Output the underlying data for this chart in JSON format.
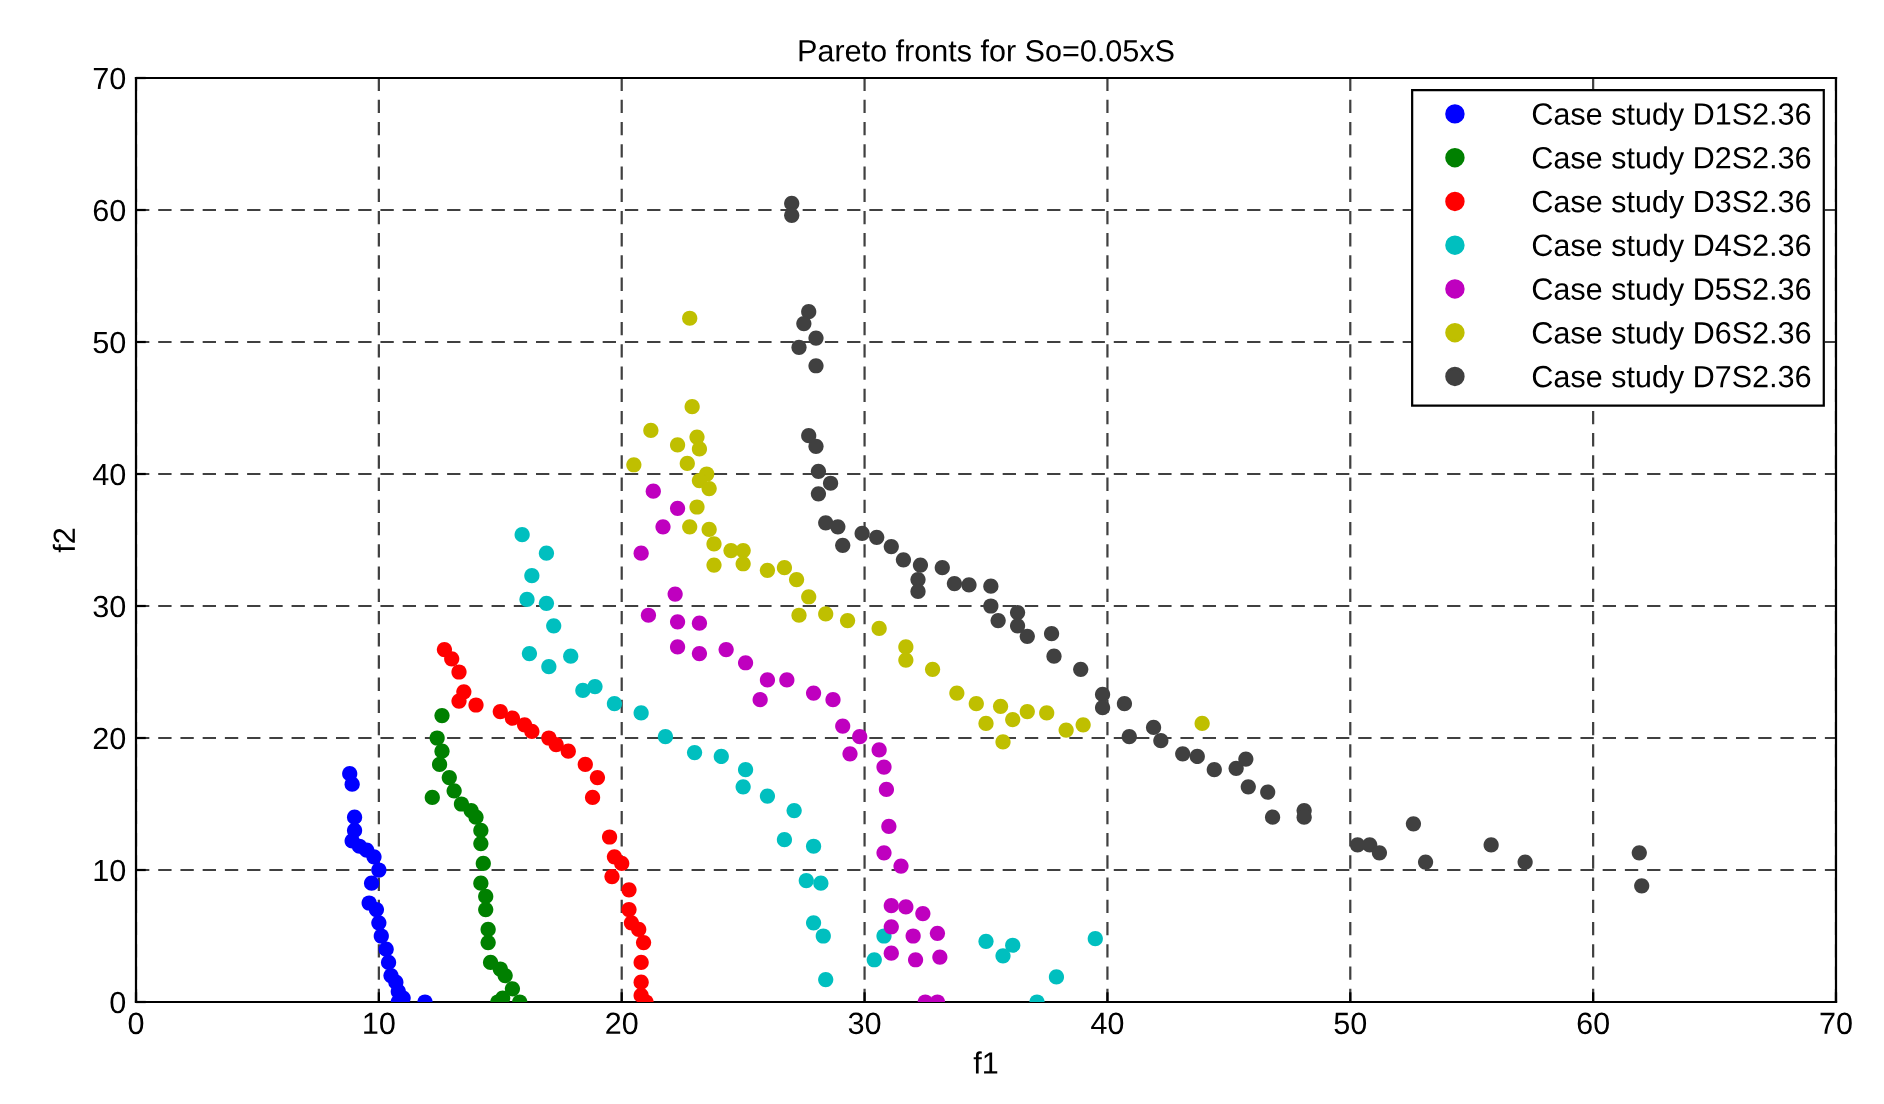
{
  "chart_data": {
    "type": "scatter",
    "title": "Pareto fronts for So=0.05xS",
    "xlabel": "f1",
    "ylabel": "f2",
    "xlim": [
      0,
      70
    ],
    "ylim": [
      0,
      70
    ],
    "xticks": [
      0,
      10,
      20,
      30,
      40,
      50,
      60,
      70
    ],
    "yticks": [
      0,
      10,
      20,
      30,
      40,
      50,
      60,
      70
    ],
    "grid": true,
    "legend": "top right",
    "marker": "circle",
    "series": [
      {
        "name": "Case study D1S2.36",
        "color": "#0000ff",
        "x": [
          8.8,
          8.9,
          9.0,
          9.0,
          8.9,
          9.2,
          9.5,
          9.8,
          10.0,
          9.7,
          9.6,
          9.9,
          10.0,
          10.1,
          10.3,
          10.4,
          10.5,
          10.7,
          10.8,
          11.0,
          10.8,
          11.9
        ],
        "values": [
          17.3,
          16.5,
          14,
          13,
          12.2,
          11.8,
          11.5,
          11,
          10,
          9,
          7.5,
          7,
          6,
          5,
          4,
          3,
          2,
          1.5,
          0.8,
          0.3,
          0,
          0
        ]
      },
      {
        "name": "Case study D2S2.36",
        "color": "#008000",
        "x": [
          12.6,
          12.4,
          12.6,
          12.5,
          12.9,
          12.2,
          13.1,
          13.4,
          13.8,
          14.0,
          14.2,
          14.2,
          14.3,
          14.2,
          14.4,
          14.4,
          14.5,
          14.5,
          14.6,
          15.0,
          15.2,
          15.5,
          15.1,
          14.9,
          15.8
        ],
        "values": [
          21.7,
          20,
          19,
          18,
          17,
          15.5,
          16,
          15,
          14.5,
          14,
          13,
          12,
          10.5,
          9,
          8,
          7,
          5.5,
          4.5,
          3,
          2.5,
          2,
          1,
          0.3,
          0,
          0
        ]
      },
      {
        "name": "Case study D3S2.36",
        "color": "#ff0000",
        "x": [
          12.7,
          13.0,
          13.3,
          13.5,
          13.3,
          14.0,
          15.0,
          15.5,
          16.0,
          16.3,
          17.0,
          17.3,
          17.8,
          18.5,
          19.0,
          18.8,
          19.5,
          19.7,
          20.0,
          19.6,
          20.3,
          20.3,
          20.4,
          20.7,
          20.9,
          20.8,
          20.8,
          20.8,
          21.0
        ],
        "values": [
          26.7,
          26,
          25,
          23.5,
          22.8,
          22.5,
          22,
          21.5,
          21,
          20.5,
          20,
          19.5,
          19,
          18,
          17,
          15.5,
          12.5,
          11,
          10.5,
          9.5,
          8.5,
          7,
          6,
          5.5,
          4.5,
          3,
          1.5,
          0.5,
          0
        ]
      },
      {
        "name": "Case study D4S2.36",
        "color": "#00bfbf",
        "x": [
          15.9,
          16.9,
          16.3,
          16.1,
          16.9,
          17.2,
          16.2,
          17.0,
          17.9,
          18.4,
          18.9,
          19.7,
          20.8,
          21.8,
          23.0,
          24.1,
          25.1,
          25.0,
          26.0,
          27.1,
          26.7,
          27.9,
          27.6,
          28.2,
          27.9,
          28.3,
          28.4,
          30.4,
          30.8,
          35.0,
          36.1,
          35.7,
          37.9,
          37.1,
          39.5
        ],
        "values": [
          35.4,
          34,
          32.3,
          30.5,
          30.2,
          28.5,
          26.4,
          25.4,
          26.2,
          23.6,
          23.9,
          22.6,
          21.9,
          20.1,
          18.9,
          18.6,
          17.6,
          16.3,
          15.6,
          14.5,
          12.3,
          11.8,
          9.2,
          9.0,
          6.0,
          5.0,
          1.7,
          3.2,
          5.0,
          4.6,
          4.3,
          3.5,
          1.9,
          0,
          4.8
        ]
      },
      {
        "name": "Case study D5S2.36",
        "color": "#bf00bf",
        "x": [
          21.3,
          22.3,
          21.7,
          20.8,
          22.2,
          21.1,
          22.3,
          22.3,
          23.2,
          23.2,
          24.3,
          25.1,
          26.0,
          25.7,
          26.8,
          27.9,
          28.7,
          29.1,
          29.8,
          29.4,
          30.6,
          30.8,
          30.9,
          31.0,
          30.8,
          31.5,
          31.1,
          31.7,
          31.1,
          32.4,
          32.0,
          33.0,
          31.1,
          32.1,
          33.1,
          32.5,
          33.0
        ],
        "values": [
          38.7,
          37.4,
          36.0,
          34.0,
          30.9,
          29.3,
          28.8,
          26.9,
          28.7,
          26.4,
          26.7,
          25.7,
          24.4,
          22.9,
          24.4,
          23.4,
          22.9,
          20.9,
          20.1,
          18.8,
          19.1,
          17.8,
          16.1,
          13.3,
          11.3,
          10.3,
          7.3,
          7.2,
          5.7,
          6.7,
          5.0,
          5.2,
          3.7,
          3.2,
          3.4,
          0,
          0
        ]
      },
      {
        "name": "Case study D6S2.36",
        "color": "#bfbf00",
        "x": [
          22.8,
          22.9,
          21.2,
          22.3,
          23.1,
          23.2,
          22.7,
          20.5,
          23.5,
          23.2,
          23.6,
          23.1,
          22.8,
          23.6,
          23.8,
          24.5,
          23.8,
          25.0,
          25.0,
          26.0,
          26.7,
          27.2,
          27.7,
          27.3,
          28.4,
          29.3,
          30.6,
          31.7,
          31.7,
          32.8,
          33.8,
          34.6,
          35.6,
          35.0,
          36.1,
          36.7,
          37.5,
          35.7,
          38.3,
          39.0,
          43.9
        ],
        "values": [
          51.8,
          45.1,
          43.3,
          42.2,
          42.8,
          41.9,
          40.8,
          40.7,
          40.0,
          39.5,
          38.9,
          37.5,
          36.0,
          35.8,
          34.7,
          34.2,
          33.1,
          34.2,
          33.2,
          32.7,
          32.9,
          32.0,
          30.7,
          29.3,
          29.4,
          28.9,
          28.3,
          26.9,
          25.9,
          25.2,
          23.4,
          22.6,
          22.4,
          21.1,
          21.4,
          22.0,
          21.9,
          19.7,
          20.6,
          21.0,
          21.1
        ]
      },
      {
        "name": "Case study D7S2.36",
        "color": "#404040",
        "x": [
          27.0,
          27.0,
          27.7,
          27.5,
          28.0,
          27.3,
          28.0,
          27.7,
          28.0,
          28.1,
          28.6,
          28.1,
          28.4,
          28.9,
          29.1,
          29.9,
          30.5,
          31.1,
          31.6,
          32.3,
          32.2,
          32.2,
          33.2,
          33.7,
          34.3,
          35.2,
          35.2,
          35.5,
          36.3,
          36.3,
          36.7,
          37.7,
          37.8,
          38.9,
          39.8,
          39.8,
          40.7,
          40.9,
          41.9,
          42.2,
          43.1,
          43.7,
          44.4,
          45.3,
          45.7,
          45.8,
          46.6,
          46.8,
          48.1,
          48.1,
          50.3,
          50.8,
          51.2,
          52.6,
          53.1,
          55.8,
          57.2,
          61.9,
          62.0
        ],
        "values": [
          60.5,
          59.6,
          52.3,
          51.4,
          50.3,
          49.6,
          48.2,
          42.9,
          42.1,
          40.2,
          39.3,
          38.5,
          36.3,
          36.0,
          34.6,
          35.5,
          35.2,
          34.5,
          33.5,
          33.1,
          32.0,
          31.1,
          32.9,
          31.7,
          31.6,
          31.5,
          30.0,
          28.9,
          29.5,
          28.5,
          27.7,
          27.9,
          26.2,
          25.2,
          23.3,
          22.3,
          22.6,
          20.1,
          20.8,
          19.8,
          18.8,
          18.6,
          17.6,
          17.7,
          18.4,
          16.3,
          15.9,
          14.0,
          14.5,
          14.0,
          11.9,
          11.9,
          11.3,
          13.5,
          10.6,
          11.9,
          10.6,
          11.3,
          8.8
        ]
      }
    ]
  }
}
